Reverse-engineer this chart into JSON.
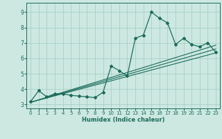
{
  "xlabel": "Humidex (Indice chaleur)",
  "bg_color": "#cce8e0",
  "grid_color": "#a8cfc8",
  "line_color": "#1a6b5a",
  "xlim": [
    -0.5,
    23.5
  ],
  "ylim": [
    2.75,
    9.6
  ],
  "xticks": [
    0,
    1,
    2,
    3,
    4,
    5,
    6,
    7,
    8,
    9,
    10,
    11,
    12,
    13,
    14,
    15,
    16,
    17,
    18,
    19,
    20,
    21,
    22,
    23
  ],
  "yticks": [
    3,
    4,
    5,
    6,
    7,
    8,
    9
  ],
  "curve1_x": [
    0,
    1,
    2,
    3,
    4,
    5,
    6,
    7,
    8,
    9,
    10,
    11,
    12,
    13,
    14,
    15,
    16,
    17,
    18,
    19,
    20,
    21,
    22,
    23
  ],
  "curve1_y": [
    3.2,
    3.9,
    3.5,
    3.7,
    3.7,
    3.6,
    3.55,
    3.5,
    3.45,
    3.8,
    5.5,
    5.2,
    4.85,
    7.3,
    7.5,
    9.0,
    8.6,
    8.3,
    6.9,
    7.3,
    6.9,
    6.75,
    7.0,
    6.4
  ],
  "line1_x": [
    0,
    23
  ],
  "line1_y": [
    3.15,
    6.35
  ],
  "line2_x": [
    0,
    23
  ],
  "line2_y": [
    3.15,
    6.85
  ],
  "line3_x": [
    0,
    23
  ],
  "line3_y": [
    3.15,
    6.6
  ]
}
